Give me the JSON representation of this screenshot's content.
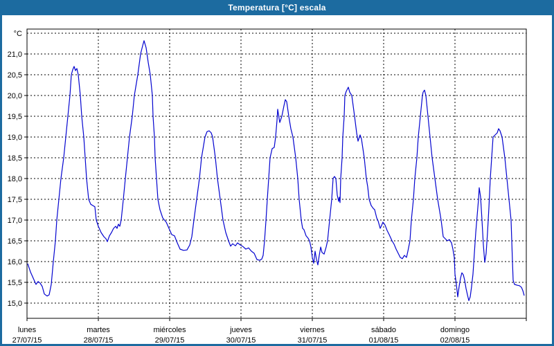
{
  "window": {
    "title": "Temperatura [°C] escala"
  },
  "colors": {
    "titlebar": "#1c6ba0",
    "frame": "#1c6ba0",
    "background": "#ffffff",
    "plot_border": "#000000",
    "grid": "#000000",
    "line": "#0202cf",
    "text": "#000000"
  },
  "chart_data": {
    "type": "line",
    "title": "Temperatura [°C] escala",
    "unit_label": "°C",
    "xlabel": "",
    "ylabel": "°C",
    "grid": "dashed",
    "legend": "none",
    "y_axis": {
      "min": 14.6,
      "max": 21.6,
      "gridline_min": 15.0,
      "gridline_max": 21.5,
      "step": 0.5,
      "tick_labels": [
        "21,0",
        "20,5",
        "20,0",
        "19,5",
        "19,0",
        "18,5",
        "18,0",
        "17,5",
        "17,0",
        "16,5",
        "16,0",
        "15,5",
        "15,0"
      ],
      "tick_values": [
        21.0,
        20.5,
        20.0,
        19.5,
        19.0,
        18.5,
        18.0,
        17.5,
        17.0,
        16.5,
        16.0,
        15.5,
        15.0
      ]
    },
    "x_axis": {
      "unit": "days",
      "span_days": 7,
      "gridline_step_days": 1,
      "categories": [
        {
          "name": "lunes",
          "date": "27/07/15"
        },
        {
          "name": "martes",
          "date": "28/07/15"
        },
        {
          "name": "miércoles",
          "date": "29/07/15"
        },
        {
          "name": "jueves",
          "date": "30/07/15"
        },
        {
          "name": "viernes",
          "date": "31/07/15"
        },
        {
          "name": "sábado",
          "date": "01/08/15"
        },
        {
          "name": "domingo",
          "date": "02/08/15"
        }
      ]
    },
    "series": [
      {
        "name": "Temperatura",
        "color": "#0202cf",
        "points": [
          [
            0.01,
            15.95
          ],
          [
            0.049,
            15.75
          ],
          [
            0.087,
            15.6
          ],
          [
            0.126,
            15.45
          ],
          [
            0.155,
            15.52
          ],
          [
            0.184,
            15.48
          ],
          [
            0.214,
            15.4
          ],
          [
            0.243,
            15.22
          ],
          [
            0.282,
            15.17
          ],
          [
            0.311,
            15.2
          ],
          [
            0.34,
            15.45
          ],
          [
            0.369,
            16.0
          ],
          [
            0.398,
            16.5
          ],
          [
            0.417,
            17.0
          ],
          [
            0.447,
            17.5
          ],
          [
            0.476,
            18.0
          ],
          [
            0.515,
            18.5
          ],
          [
            0.544,
            19.0
          ],
          [
            0.573,
            19.5
          ],
          [
            0.602,
            20.0
          ],
          [
            0.621,
            20.5
          ],
          [
            0.641,
            20.62
          ],
          [
            0.66,
            20.7
          ],
          [
            0.68,
            20.6
          ],
          [
            0.699,
            20.65
          ],
          [
            0.718,
            20.5
          ],
          [
            0.748,
            20.0
          ],
          [
            0.767,
            19.5
          ],
          [
            0.796,
            19.0
          ],
          [
            0.816,
            18.5
          ],
          [
            0.835,
            18.0
          ],
          [
            0.864,
            17.5
          ],
          [
            0.893,
            17.38
          ],
          [
            0.922,
            17.35
          ],
          [
            0.951,
            17.32
          ],
          [
            0.971,
            17.0
          ],
          [
            1.0,
            16.85
          ],
          [
            1.039,
            16.7
          ],
          [
            1.078,
            16.6
          ],
          [
            1.107,
            16.55
          ],
          [
            1.126,
            16.48
          ],
          [
            1.155,
            16.62
          ],
          [
            1.184,
            16.7
          ],
          [
            1.214,
            16.8
          ],
          [
            1.243,
            16.85
          ],
          [
            1.262,
            16.8
          ],
          [
            1.282,
            16.9
          ],
          [
            1.301,
            16.85
          ],
          [
            1.32,
            17.0
          ],
          [
            1.35,
            17.5
          ],
          [
            1.379,
            18.0
          ],
          [
            1.408,
            18.5
          ],
          [
            1.437,
            19.0
          ],
          [
            1.476,
            19.5
          ],
          [
            1.505,
            20.0
          ],
          [
            1.553,
            20.5
          ],
          [
            1.592,
            21.0
          ],
          [
            1.621,
            21.2
          ],
          [
            1.641,
            21.32
          ],
          [
            1.67,
            21.15
          ],
          [
            1.699,
            20.8
          ],
          [
            1.728,
            20.5
          ],
          [
            1.757,
            20.0
          ],
          [
            1.767,
            19.5
          ],
          [
            1.786,
            19.0
          ],
          [
            1.796,
            18.5
          ],
          [
            1.816,
            18.0
          ],
          [
            1.835,
            17.5
          ],
          [
            1.864,
            17.25
          ],
          [
            1.903,
            17.05
          ],
          [
            1.951,
            16.95
          ],
          [
            1.99,
            16.8
          ],
          [
            2.029,
            16.65
          ],
          [
            2.068,
            16.62
          ],
          [
            2.107,
            16.45
          ],
          [
            2.146,
            16.3
          ],
          [
            2.194,
            16.27
          ],
          [
            2.243,
            16.28
          ],
          [
            2.282,
            16.4
          ],
          [
            2.311,
            16.6
          ],
          [
            2.34,
            17.0
          ],
          [
            2.379,
            17.5
          ],
          [
            2.417,
            18.0
          ],
          [
            2.447,
            18.5
          ],
          [
            2.495,
            19.0
          ],
          [
            2.524,
            19.13
          ],
          [
            2.553,
            19.15
          ],
          [
            2.583,
            19.1
          ],
          [
            2.602,
            19.0
          ],
          [
            2.641,
            18.5
          ],
          [
            2.67,
            18.0
          ],
          [
            2.709,
            17.5
          ],
          [
            2.748,
            17.0
          ],
          [
            2.786,
            16.7
          ],
          [
            2.825,
            16.5
          ],
          [
            2.854,
            16.37
          ],
          [
            2.883,
            16.43
          ],
          [
            2.922,
            16.38
          ],
          [
            2.951,
            16.45
          ],
          [
            2.99,
            16.4
          ],
          [
            3.029,
            16.36
          ],
          [
            3.068,
            16.3
          ],
          [
            3.107,
            16.33
          ],
          [
            3.146,
            16.25
          ],
          [
            3.184,
            16.2
          ],
          [
            3.223,
            16.05
          ],
          [
            3.262,
            16.03
          ],
          [
            3.291,
            16.06
          ],
          [
            3.311,
            16.15
          ],
          [
            3.33,
            16.5
          ],
          [
            3.35,
            17.0
          ],
          [
            3.369,
            17.5
          ],
          [
            3.388,
            18.0
          ],
          [
            3.408,
            18.5
          ],
          [
            3.437,
            18.72
          ],
          [
            3.466,
            18.75
          ],
          [
            3.485,
            19.0
          ],
          [
            3.505,
            19.4
          ],
          [
            3.515,
            19.67
          ],
          [
            3.534,
            19.45
          ],
          [
            3.544,
            19.35
          ],
          [
            3.573,
            19.5
          ],
          [
            3.602,
            19.75
          ],
          [
            3.621,
            19.9
          ],
          [
            3.641,
            19.85
          ],
          [
            3.67,
            19.5
          ],
          [
            3.699,
            19.2
          ],
          [
            3.728,
            19.0
          ],
          [
            3.767,
            18.5
          ],
          [
            3.796,
            18.0
          ],
          [
            3.816,
            17.5
          ],
          [
            3.845,
            17.0
          ],
          [
            3.864,
            16.8
          ],
          [
            3.883,
            16.77
          ],
          [
            3.913,
            16.62
          ],
          [
            3.942,
            16.56
          ],
          [
            3.961,
            16.5
          ],
          [
            3.981,
            16.35
          ],
          [
            4.0,
            16.1
          ],
          [
            4.019,
            15.96
          ],
          [
            4.039,
            16.25
          ],
          [
            4.058,
            16.05
          ],
          [
            4.078,
            15.92
          ],
          [
            4.097,
            16.15
          ],
          [
            4.117,
            16.35
          ],
          [
            4.136,
            16.22
          ],
          [
            4.165,
            16.18
          ],
          [
            4.194,
            16.35
          ],
          [
            4.214,
            16.5
          ],
          [
            4.243,
            17.0
          ],
          [
            4.272,
            17.5
          ],
          [
            4.291,
            18.0
          ],
          [
            4.311,
            18.05
          ],
          [
            4.33,
            18.0
          ],
          [
            4.35,
            17.6
          ],
          [
            4.369,
            17.45
          ],
          [
            4.379,
            17.55
          ],
          [
            4.388,
            17.42
          ],
          [
            4.398,
            18.0
          ],
          [
            4.417,
            18.5
          ],
          [
            4.427,
            19.0
          ],
          [
            4.447,
            19.5
          ],
          [
            4.456,
            20.0
          ],
          [
            4.476,
            20.1
          ],
          [
            4.505,
            20.2
          ],
          [
            4.524,
            20.08
          ],
          [
            4.553,
            20.0
          ],
          [
            4.592,
            19.5
          ],
          [
            4.621,
            19.1
          ],
          [
            4.641,
            18.9
          ],
          [
            4.67,
            19.05
          ],
          [
            4.689,
            18.95
          ],
          [
            4.728,
            18.5
          ],
          [
            4.757,
            18.0
          ],
          [
            4.777,
            17.8
          ],
          [
            4.796,
            17.5
          ],
          [
            4.825,
            17.35
          ],
          [
            4.854,
            17.28
          ],
          [
            4.874,
            17.25
          ],
          [
            4.903,
            17.05
          ],
          [
            4.922,
            16.98
          ],
          [
            4.951,
            16.8
          ],
          [
            4.971,
            16.87
          ],
          [
            4.99,
            16.95
          ],
          [
            5.019,
            16.88
          ],
          [
            5.049,
            16.75
          ],
          [
            5.078,
            16.65
          ],
          [
            5.117,
            16.5
          ],
          [
            5.146,
            16.42
          ],
          [
            5.175,
            16.3
          ],
          [
            5.204,
            16.2
          ],
          [
            5.233,
            16.1
          ],
          [
            5.262,
            16.07
          ],
          [
            5.291,
            16.15
          ],
          [
            5.32,
            16.1
          ],
          [
            5.34,
            16.25
          ],
          [
            5.369,
            16.5
          ],
          [
            5.388,
            17.0
          ],
          [
            5.417,
            17.5
          ],
          [
            5.437,
            18.0
          ],
          [
            5.466,
            18.5
          ],
          [
            5.485,
            19.0
          ],
          [
            5.515,
            19.5
          ],
          [
            5.544,
            20.0
          ],
          [
            5.553,
            20.08
          ],
          [
            5.573,
            20.13
          ],
          [
            5.592,
            20.0
          ],
          [
            5.621,
            19.5
          ],
          [
            5.65,
            19.0
          ],
          [
            5.68,
            18.5
          ],
          [
            5.718,
            18.0
          ],
          [
            5.757,
            17.5
          ],
          [
            5.806,
            17.0
          ],
          [
            5.835,
            16.6
          ],
          [
            5.864,
            16.55
          ],
          [
            5.893,
            16.5
          ],
          [
            5.922,
            16.53
          ],
          [
            5.951,
            16.45
          ],
          [
            5.971,
            16.3
          ],
          [
            5.99,
            16.1
          ],
          [
            6.0,
            15.7
          ],
          [
            6.019,
            15.45
          ],
          [
            6.039,
            15.15
          ],
          [
            6.058,
            15.4
          ],
          [
            6.078,
            15.6
          ],
          [
            6.097,
            15.73
          ],
          [
            6.117,
            15.68
          ],
          [
            6.136,
            15.55
          ],
          [
            6.155,
            15.35
          ],
          [
            6.175,
            15.2
          ],
          [
            6.194,
            15.06
          ],
          [
            6.214,
            15.15
          ],
          [
            6.233,
            15.4
          ],
          [
            6.252,
            15.7
          ],
          [
            6.272,
            16.2
          ],
          [
            6.291,
            16.7
          ],
          [
            6.311,
            17.1
          ],
          [
            6.33,
            17.5
          ],
          [
            6.34,
            17.78
          ],
          [
            6.359,
            17.55
          ],
          [
            6.379,
            17.0
          ],
          [
            6.398,
            16.4
          ],
          [
            6.417,
            15.98
          ],
          [
            6.437,
            16.2
          ],
          [
            6.456,
            16.7
          ],
          [
            6.476,
            17.3
          ],
          [
            6.495,
            18.0
          ],
          [
            6.515,
            18.5
          ],
          [
            6.534,
            19.0
          ],
          [
            6.563,
            19.05
          ],
          [
            6.592,
            19.1
          ],
          [
            6.612,
            19.2
          ],
          [
            6.631,
            19.15
          ],
          [
            6.66,
            19.0
          ],
          [
            6.699,
            18.5
          ],
          [
            6.728,
            18.0
          ],
          [
            6.757,
            17.5
          ],
          [
            6.786,
            17.0
          ],
          [
            6.796,
            16.5
          ],
          [
            6.806,
            16.0
          ],
          [
            6.816,
            15.55
          ],
          [
            6.835,
            15.45
          ],
          [
            6.874,
            15.43
          ],
          [
            6.903,
            15.42
          ],
          [
            6.932,
            15.38
          ],
          [
            6.951,
            15.3
          ],
          [
            6.971,
            15.18
          ]
        ]
      }
    ]
  }
}
